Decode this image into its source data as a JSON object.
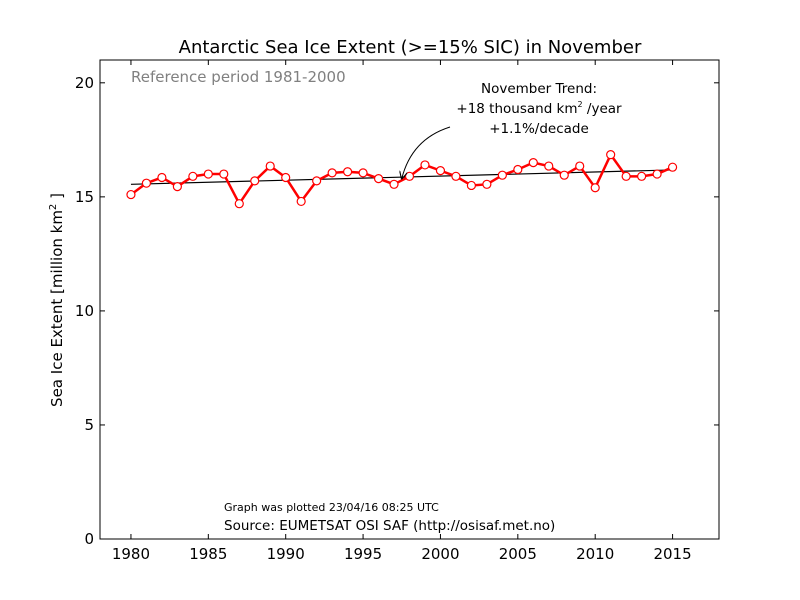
{
  "chart_data": {
    "type": "line",
    "title": "Antarctic Sea Ice Extent (>=15% SIC) in November",
    "subtitle": "Reference period 1981-2000",
    "ylabel_parts": [
      "Sea Ice Extent [million km",
      "2",
      " ]"
    ],
    "xlim": [
      1978,
      2018
    ],
    "ylim": [
      0,
      21
    ],
    "xticks": [
      1980,
      1985,
      1990,
      1995,
      2000,
      2005,
      2010,
      2015
    ],
    "yticks": [
      0,
      5,
      10,
      15,
      20
    ],
    "grid": false,
    "series": [
      {
        "color": "#ff0000",
        "x": [
          1980,
          1981,
          1982,
          1983,
          1984,
          1985,
          1986,
          1987,
          1988,
          1989,
          1990,
          1991,
          1992,
          1993,
          1994,
          1995,
          1996,
          1997,
          1998,
          1999,
          2000,
          2001,
          2002,
          2003,
          2004,
          2005,
          2006,
          2007,
          2008,
          2009,
          2010,
          2011,
          2012,
          2013,
          2014,
          2015
        ],
        "values": [
          15.1,
          15.6,
          15.85,
          15.45,
          15.9,
          16.0,
          16.0,
          14.7,
          15.7,
          16.35,
          15.85,
          14.8,
          15.7,
          16.05,
          16.1,
          16.05,
          15.8,
          15.55,
          15.9,
          16.4,
          16.15,
          15.9,
          15.5,
          15.55,
          15.95,
          16.2,
          16.5,
          16.35,
          15.95,
          16.35,
          15.4,
          16.85,
          15.9,
          15.9,
          16.0,
          16.3
        ]
      }
    ],
    "trend_line": {
      "color": "#000000",
      "x": [
        1980,
        2015
      ],
      "values": [
        15.55,
        16.18
      ]
    },
    "annotation": {
      "lines": [
        [
          "November Trend:"
        ],
        [
          "+18 thousand km",
          "2",
          " /year"
        ],
        [
          "+1.1%/decade"
        ]
      ],
      "arrow_target": {
        "x": 1997.5,
        "y": 15.8
      }
    },
    "footnotes": {
      "plotted": "Graph was plotted 23/04/16 08:25 UTC",
      "source": "Source: EUMETSAT OSI SAF (http://osisaf.met.no)"
    }
  }
}
